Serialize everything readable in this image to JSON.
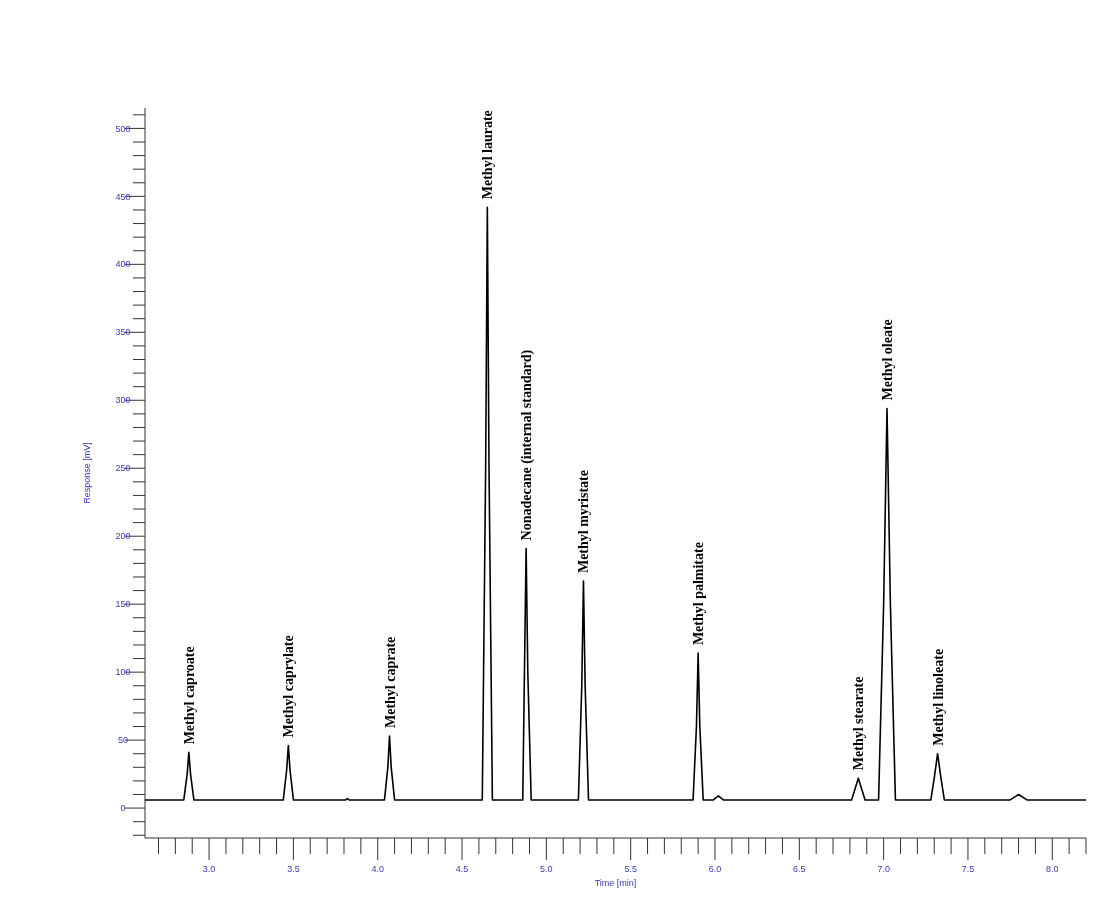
{
  "chart_data": {
    "type": "line",
    "xlabel": "Time [min]",
    "ylabel": "Response [mV]",
    "x": [
      2.62,
      2.85,
      2.87,
      2.88,
      2.89,
      2.91,
      3.44,
      3.46,
      3.47,
      3.48,
      3.5,
      3.81,
      3.82,
      3.83,
      4.04,
      4.06,
      4.07,
      4.08,
      4.1,
      4.62,
      4.64,
      4.65,
      4.66,
      4.68,
      4.86,
      4.87,
      4.88,
      4.89,
      4.91,
      5.19,
      5.21,
      5.22,
      5.23,
      5.25,
      5.87,
      5.89,
      5.9,
      5.91,
      5.93,
      5.99,
      6.02,
      6.05,
      6.81,
      6.85,
      6.89,
      6.97,
      7.0,
      7.02,
      7.04,
      7.07,
      7.28,
      7.3,
      7.32,
      7.34,
      7.36,
      7.75,
      7.8,
      7.85,
      8.2
    ],
    "series": [
      {
        "color": "#000000",
        "values": [
          6,
          6,
          25,
          41,
          25,
          6,
          6,
          28,
          46,
          28,
          6,
          6,
          7,
          6,
          6,
          30,
          53,
          30,
          6,
          6,
          250,
          442,
          250,
          6,
          6,
          100,
          191,
          100,
          6,
          6,
          90,
          167,
          90,
          6,
          6,
          60,
          114,
          60,
          6,
          6,
          9,
          6,
          6,
          22,
          6,
          6,
          150,
          294,
          150,
          6,
          6,
          22,
          40,
          22,
          6,
          6,
          10,
          6,
          6
        ]
      }
    ],
    "xlim": [
      2.62,
      8.2
    ],
    "xticks": [
      {
        "value": 2.7,
        "label": null
      },
      {
        "value": 2.8,
        "label": null
      },
      {
        "value": 2.9,
        "label": null
      },
      {
        "value": 3,
        "label": "3.0"
      },
      {
        "value": 3.1,
        "label": null
      },
      {
        "value": 3.2,
        "label": null
      },
      {
        "value": 3.3,
        "label": null
      },
      {
        "value": 3.4,
        "label": null
      },
      {
        "value": 3.5,
        "label": "3.5"
      },
      {
        "value": 3.6,
        "label": null
      },
      {
        "value": 3.7,
        "label": null
      },
      {
        "value": 3.8,
        "label": null
      },
      {
        "value": 3.9,
        "label": null
      },
      {
        "value": 4,
        "label": "4.0"
      },
      {
        "value": 4.1,
        "label": null
      },
      {
        "value": 4.2,
        "label": null
      },
      {
        "value": 4.3,
        "label": null
      },
      {
        "value": 4.4,
        "label": null
      },
      {
        "value": 4.5,
        "label": "4.5"
      },
      {
        "value": 4.6,
        "label": null
      },
      {
        "value": 4.7,
        "label": null
      },
      {
        "value": 4.8,
        "label": null
      },
      {
        "value": 4.9,
        "label": null
      },
      {
        "value": 5,
        "label": "5.0"
      },
      {
        "value": 5.1,
        "label": null
      },
      {
        "value": 5.2,
        "label": null
      },
      {
        "value": 5.3,
        "label": null
      },
      {
        "value": 5.4,
        "label": null
      },
      {
        "value": 5.5,
        "label": "5.5"
      },
      {
        "value": 5.6,
        "label": null
      },
      {
        "value": 5.7,
        "label": null
      },
      {
        "value": 5.8,
        "label": null
      },
      {
        "value": 5.9,
        "label": null
      },
      {
        "value": 6,
        "label": "6.0"
      },
      {
        "value": 6.1,
        "label": null
      },
      {
        "value": 6.2,
        "label": null
      },
      {
        "value": 6.3,
        "label": null
      },
      {
        "value": 6.4,
        "label": null
      },
      {
        "value": 6.5,
        "label": "6.5"
      },
      {
        "value": 6.6,
        "label": null
      },
      {
        "value": 6.7,
        "label": null
      },
      {
        "value": 6.8,
        "label": null
      },
      {
        "value": 6.9,
        "label": null
      },
      {
        "value": 7,
        "label": "7.0"
      },
      {
        "value": 7.1,
        "label": null
      },
      {
        "value": 7.2,
        "label": null
      },
      {
        "value": 7.3,
        "label": null
      },
      {
        "value": 7.4,
        "label": null
      },
      {
        "value": 7.5,
        "label": "7.5"
      },
      {
        "value": 7.6,
        "label": null
      },
      {
        "value": 7.7,
        "label": null
      },
      {
        "value": 7.8,
        "label": null
      },
      {
        "value": 7.9,
        "label": null
      },
      {
        "value": 8,
        "label": "8.0"
      },
      {
        "value": 8.1,
        "label": null
      },
      {
        "value": 8.2,
        "label": null
      }
    ],
    "ylim": [
      -22,
      515
    ],
    "yticks": [
      {
        "value": -20,
        "label": null
      },
      {
        "value": -10,
        "label": null
      },
      0,
      {
        "value": 10,
        "label": null
      },
      {
        "value": 20,
        "label": null
      },
      {
        "value": 30,
        "label": null
      },
      {
        "value": 40,
        "label": null
      },
      50,
      {
        "value": 60,
        "label": null
      },
      {
        "value": 70,
        "label": null
      },
      {
        "value": 80,
        "label": null
      },
      {
        "value": 90,
        "label": null
      },
      100,
      {
        "value": 110,
        "label": null
      },
      {
        "value": 120,
        "label": null
      },
      {
        "value": 130,
        "label": null
      },
      {
        "value": 140,
        "label": null
      },
      150,
      {
        "value": 160,
        "label": null
      },
      {
        "value": 170,
        "label": null
      },
      {
        "value": 180,
        "label": null
      },
      {
        "value": 190,
        "label": null
      },
      200,
      {
        "value": 210,
        "label": null
      },
      {
        "value": 220,
        "label": null
      },
      {
        "value": 230,
        "label": null
      },
      {
        "value": 240,
        "label": null
      },
      250,
      {
        "value": 260,
        "label": null
      },
      {
        "value": 270,
        "label": null
      },
      {
        "value": 280,
        "label": null
      },
      {
        "value": 290,
        "label": null
      },
      300,
      {
        "value": 310,
        "label": null
      },
      {
        "value": 320,
        "label": null
      },
      {
        "value": 330,
        "label": null
      },
      {
        "value": 340,
        "label": null
      },
      350,
      {
        "value": 360,
        "label": null
      },
      {
        "value": 370,
        "label": null
      },
      {
        "value": 380,
        "label": null
      },
      {
        "value": 390,
        "label": null
      },
      400,
      {
        "value": 410,
        "label": null
      },
      {
        "value": 420,
        "label": null
      },
      {
        "value": 430,
        "label": null
      },
      {
        "value": 440,
        "label": null
      },
      450,
      {
        "value": 460,
        "label": null
      },
      {
        "value": 470,
        "label": null
      },
      {
        "value": 480,
        "label": null
      },
      {
        "value": 490,
        "label": null
      },
      500,
      {
        "value": 510,
        "label": null
      }
    ],
    "marker": "none",
    "line_style": "solid",
    "grid": false,
    "annotations": [
      {
        "text": "Methyl caproate",
        "x": 2.88,
        "y": 41
      },
      {
        "text": "Methyl caprylate",
        "x": 3.47,
        "y": 46
      },
      {
        "text": "Methyl caprate",
        "x": 4.07,
        "y": 53
      },
      {
        "text": "Methyl laurate",
        "x": 4.65,
        "y": 442
      },
      {
        "text": "Nonadecane (internal standard)",
        "x": 4.88,
        "y": 191
      },
      {
        "text": "Methyl myristate",
        "x": 5.22,
        "y": 167
      },
      {
        "text": "Methyl palmitate",
        "x": 5.9,
        "y": 114
      },
      {
        "text": "Methyl stearate",
        "x": 6.85,
        "y": 22
      },
      {
        "text": "Methyl oleate",
        "x": 7.02,
        "y": 294
      },
      {
        "text": "Methyl linoleate",
        "x": 7.32,
        "y": 40
      }
    ]
  }
}
